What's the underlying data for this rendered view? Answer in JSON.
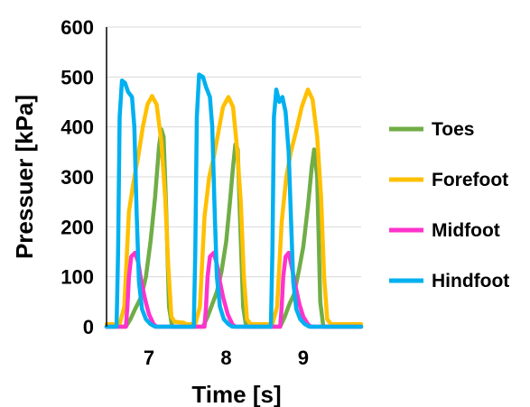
{
  "chart_data": {
    "type": "line",
    "xlabel": "Time [s]",
    "ylabel": "Pressuer [kPa]",
    "xlim": [
      6.45,
      9.75
    ],
    "ylim": [
      0,
      600
    ],
    "x_ticks": [
      7,
      8,
      9
    ],
    "y_ticks": [
      0,
      100,
      200,
      300,
      400,
      500,
      600
    ],
    "grid": true,
    "legend_position": "right",
    "series": [
      {
        "name": "Toes",
        "color": "#70AD47",
        "points": [
          [
            6.45,
            0
          ],
          [
            6.7,
            0
          ],
          [
            6.76,
            15
          ],
          [
            6.82,
            35
          ],
          [
            6.9,
            60
          ],
          [
            6.96,
            100
          ],
          [
            7.02,
            170
          ],
          [
            7.08,
            260
          ],
          [
            7.13,
            360
          ],
          [
            7.16,
            395
          ],
          [
            7.19,
            380
          ],
          [
            7.22,
            250
          ],
          [
            7.26,
            40
          ],
          [
            7.3,
            0
          ],
          [
            7.7,
            0
          ],
          [
            7.76,
            20
          ],
          [
            7.82,
            45
          ],
          [
            7.88,
            70
          ],
          [
            7.94,
            110
          ],
          [
            8.0,
            170
          ],
          [
            8.05,
            250
          ],
          [
            8.09,
            320
          ],
          [
            8.12,
            365
          ],
          [
            8.15,
            355
          ],
          [
            8.18,
            220
          ],
          [
            8.22,
            40
          ],
          [
            8.26,
            0
          ],
          [
            8.7,
            0
          ],
          [
            8.76,
            20
          ],
          [
            8.82,
            45
          ],
          [
            8.88,
            65
          ],
          [
            8.94,
            110
          ],
          [
            9.0,
            160
          ],
          [
            9.06,
            240
          ],
          [
            9.11,
            320
          ],
          [
            9.14,
            355
          ],
          [
            9.18,
            300
          ],
          [
            9.22,
            50
          ],
          [
            9.26,
            0
          ],
          [
            9.75,
            0
          ]
        ]
      },
      {
        "name": "Forefoot",
        "color": "#FFC000",
        "points": [
          [
            6.45,
            5
          ],
          [
            6.62,
            5
          ],
          [
            6.68,
            40
          ],
          [
            6.74,
            230
          ],
          [
            6.8,
            290
          ],
          [
            6.86,
            340
          ],
          [
            6.92,
            400
          ],
          [
            6.98,
            445
          ],
          [
            7.04,
            462
          ],
          [
            7.1,
            445
          ],
          [
            7.16,
            370
          ],
          [
            7.21,
            260
          ],
          [
            7.25,
            120
          ],
          [
            7.29,
            20
          ],
          [
            7.33,
            10
          ],
          [
            7.45,
            8
          ],
          [
            7.48,
            5
          ],
          [
            7.6,
            5
          ],
          [
            7.66,
            40
          ],
          [
            7.72,
            220
          ],
          [
            7.78,
            300
          ],
          [
            7.84,
            340
          ],
          [
            7.9,
            390
          ],
          [
            7.96,
            440
          ],
          [
            8.03,
            460
          ],
          [
            8.09,
            440
          ],
          [
            8.14,
            360
          ],
          [
            8.19,
            250
          ],
          [
            8.23,
            100
          ],
          [
            8.27,
            15
          ],
          [
            8.32,
            5
          ],
          [
            8.6,
            5
          ],
          [
            8.66,
            40
          ],
          [
            8.72,
            210
          ],
          [
            8.78,
            300
          ],
          [
            8.84,
            350
          ],
          [
            8.92,
            400
          ],
          [
            8.98,
            440
          ],
          [
            9.06,
            475
          ],
          [
            9.12,
            455
          ],
          [
            9.18,
            380
          ],
          [
            9.23,
            260
          ],
          [
            9.27,
            100
          ],
          [
            9.31,
            15
          ],
          [
            9.36,
            5
          ],
          [
            9.75,
            5
          ]
        ]
      },
      {
        "name": "Midfoot",
        "color": "#FF33CC",
        "points": [
          [
            6.45,
            0
          ],
          [
            6.7,
            0
          ],
          [
            6.72,
            40
          ],
          [
            6.74,
            100
          ],
          [
            6.77,
            140
          ],
          [
            6.82,
            148
          ],
          [
            6.86,
            130
          ],
          [
            6.9,
            90
          ],
          [
            6.95,
            55
          ],
          [
            7.0,
            25
          ],
          [
            7.06,
            5
          ],
          [
            7.1,
            0
          ],
          [
            7.72,
            0
          ],
          [
            7.74,
            40
          ],
          [
            7.76,
            100
          ],
          [
            7.79,
            140
          ],
          [
            7.84,
            148
          ],
          [
            7.88,
            125
          ],
          [
            7.92,
            90
          ],
          [
            7.96,
            60
          ],
          [
            8.02,
            25
          ],
          [
            8.08,
            5
          ],
          [
            8.12,
            0
          ],
          [
            8.7,
            0
          ],
          [
            8.72,
            40
          ],
          [
            8.74,
            100
          ],
          [
            8.77,
            140
          ],
          [
            8.81,
            148
          ],
          [
            8.85,
            120
          ],
          [
            8.9,
            80
          ],
          [
            8.95,
            45
          ],
          [
            9.0,
            20
          ],
          [
            9.06,
            5
          ],
          [
            9.1,
            0
          ],
          [
            9.75,
            0
          ]
        ]
      },
      {
        "name": "Hindfoot",
        "color": "#00B0F0",
        "points": [
          [
            6.45,
            0
          ],
          [
            6.58,
            0
          ],
          [
            6.6,
            150
          ],
          [
            6.62,
            420
          ],
          [
            6.65,
            493
          ],
          [
            6.69,
            488
          ],
          [
            6.73,
            470
          ],
          [
            6.78,
            460
          ],
          [
            6.81,
            400
          ],
          [
            6.84,
            230
          ],
          [
            6.87,
            90
          ],
          [
            6.91,
            35
          ],
          [
            6.96,
            15
          ],
          [
            7.02,
            5
          ],
          [
            7.08,
            0
          ],
          [
            7.58,
            0
          ],
          [
            7.6,
            150
          ],
          [
            7.62,
            420
          ],
          [
            7.65,
            505
          ],
          [
            7.7,
            500
          ],
          [
            7.74,
            480
          ],
          [
            7.79,
            460
          ],
          [
            7.82,
            400
          ],
          [
            7.85,
            240
          ],
          [
            7.88,
            100
          ],
          [
            7.92,
            40
          ],
          [
            7.97,
            15
          ],
          [
            8.03,
            5
          ],
          [
            8.08,
            0
          ],
          [
            8.58,
            0
          ],
          [
            8.6,
            150
          ],
          [
            8.62,
            420
          ],
          [
            8.65,
            475
          ],
          [
            8.69,
            450
          ],
          [
            8.73,
            460
          ],
          [
            8.77,
            430
          ],
          [
            8.81,
            350
          ],
          [
            8.84,
            220
          ],
          [
            8.87,
            90
          ],
          [
            8.91,
            35
          ],
          [
            8.96,
            15
          ],
          [
            9.02,
            5
          ],
          [
            9.08,
            0
          ],
          [
            9.75,
            0
          ]
        ]
      }
    ]
  }
}
